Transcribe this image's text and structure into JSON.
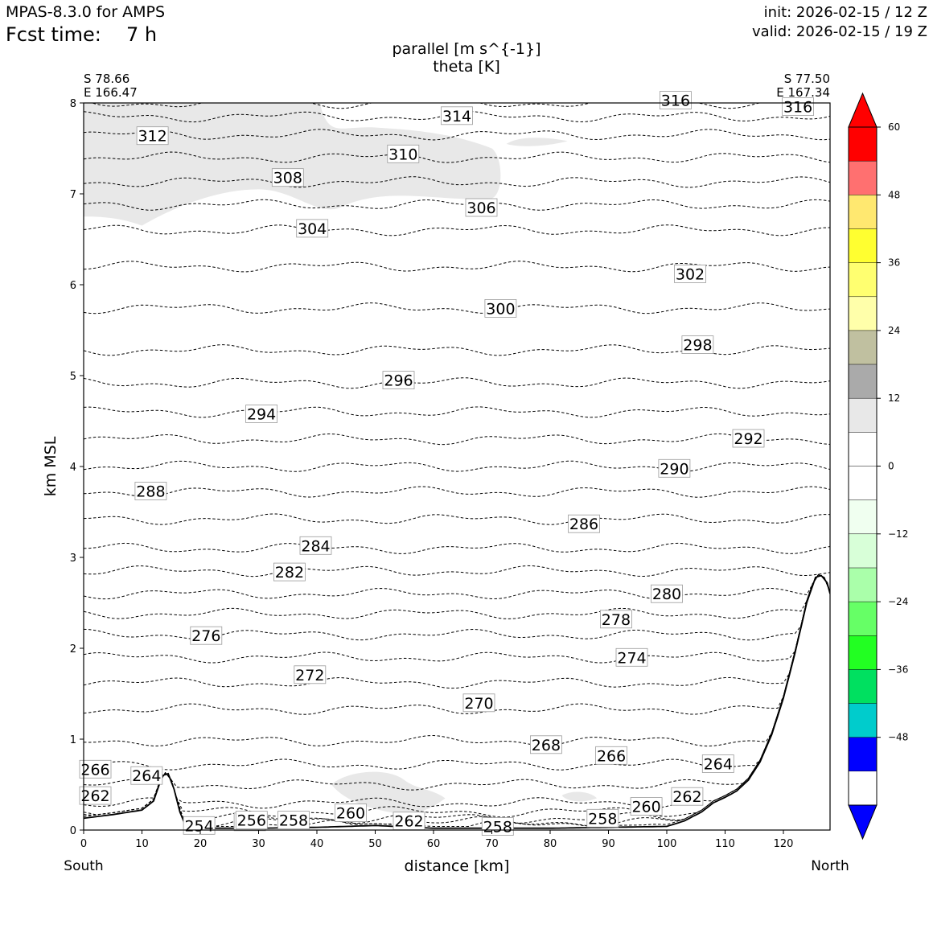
{
  "header": {
    "model": "MPAS-8.3.0 for AMPS",
    "fcst_label": "Fcst time:",
    "fcst_value": "7 h",
    "init": "init: 2026-02-15 / 12 Z",
    "valid": "valid: 2026-02-15 / 19 Z"
  },
  "chart_data": {
    "type": "contour",
    "title": "parallel [m s^{-1}]",
    "subtitle": "theta [K]",
    "xlabel": "distance [km]",
    "ylabel": "km MSL",
    "xlim": [
      0,
      128
    ],
    "ylim": [
      0,
      8
    ],
    "x_ticks": [
      "0",
      "10",
      "20",
      "30",
      "40",
      "50",
      "60",
      "70",
      "80",
      "90",
      "100",
      "110",
      "120"
    ],
    "y_ticks": [
      "0",
      "1",
      "2",
      "3",
      "4",
      "5",
      "6",
      "7",
      "8"
    ],
    "endpoints": {
      "left_lat": "S 78.66",
      "left_lon": "E 166.47",
      "left_dir": "South",
      "right_lat": "S 77.50",
      "right_lon": "E 167.34",
      "right_dir": "North"
    },
    "colorbar": {
      "ticks": [
        "60",
        "48",
        "36",
        "24",
        "12",
        "0",
        "−12",
        "−24",
        "−36",
        "−48"
      ],
      "levels": [
        60,
        54,
        48,
        42,
        36,
        30,
        24,
        18,
        12,
        6,
        0,
        -6,
        -12,
        -18,
        -24,
        -30,
        -36,
        -42,
        -48,
        -54,
        -60
      ],
      "colors": [
        "#ff0000",
        "#ff7070",
        "#ffe870",
        "#ffff30",
        "#ffff70",
        "#ffffaa",
        "#c0c0a0",
        "#aaaaaa",
        "#e8e8e8",
        "#ffffff",
        "#ffffff",
        "#f0fff0",
        "#d8ffd8",
        "#aaffaa",
        "#66ff66",
        "#22ff22",
        "#00e060",
        "#00cccc",
        "#0000ff"
      ],
      "over_color": "#ff0000",
      "under_color": "#0000ff"
    },
    "shading": [
      {
        "value_range": "6 to 12 m/s",
        "color": "#e8e8e8",
        "region": "upper-left",
        "km_x": [
          0,
          72
        ],
        "km_y": [
          6.7,
          8
        ]
      },
      {
        "value_range": "6 to 12 m/s",
        "color": "#e8e8e8",
        "region": "low-level",
        "km_x": [
          42,
          63
        ],
        "km_y": [
          0.1,
          0.7
        ]
      }
    ],
    "terrain": {
      "x": [
        0,
        5,
        10,
        12,
        13.5,
        14.5,
        15.5,
        16.5,
        17.5,
        19,
        22,
        30,
        40,
        50,
        60,
        70,
        80,
        90,
        100,
        103,
        106,
        108,
        110,
        112,
        114,
        116,
        118,
        120,
        122,
        124,
        125.5,
        126.5,
        127.5,
        128
      ],
      "y": [
        0.13,
        0.17,
        0.22,
        0.32,
        0.6,
        0.62,
        0.45,
        0.2,
        0.04,
        0.02,
        0.02,
        0.02,
        0.03,
        0.05,
        0.02,
        0.02,
        0.02,
        0.03,
        0.04,
        0.1,
        0.2,
        0.3,
        0.36,
        0.43,
        0.55,
        0.75,
        1.05,
        1.45,
        1.95,
        2.5,
        2.78,
        2.8,
        2.72,
        2.6
      ]
    },
    "theta_contours": [
      {
        "value": 254,
        "y": 0.05
      },
      {
        "value": 256,
        "y": 0.09
      },
      {
        "value": 258,
        "y": 0.13
      },
      {
        "value": 260,
        "y": 0.2
      },
      {
        "value": 262,
        "y": 0.3
      },
      {
        "value": 264,
        "y": 0.5
      },
      {
        "value": 266,
        "y": 0.72
      },
      {
        "value": 268,
        "y": 0.98
      },
      {
        "value": 270,
        "y": 1.33
      },
      {
        "value": 272,
        "y": 1.62
      },
      {
        "value": 274,
        "y": 1.9
      },
      {
        "value": 276,
        "y": 2.15
      },
      {
        "value": 278,
        "y": 2.38
      },
      {
        "value": 280,
        "y": 2.6
      },
      {
        "value": 282,
        "y": 2.85
      },
      {
        "value": 284,
        "y": 3.1
      },
      {
        "value": 286,
        "y": 3.42
      },
      {
        "value": 288,
        "y": 3.72
      },
      {
        "value": 290,
        "y": 4.0
      },
      {
        "value": 292,
        "y": 4.3
      },
      {
        "value": 294,
        "y": 4.6
      },
      {
        "value": 296,
        "y": 4.92
      },
      {
        "value": 298,
        "y": 5.28
      },
      {
        "value": 300,
        "y": 5.74
      },
      {
        "value": 302,
        "y": 6.2
      },
      {
        "value": 304,
        "y": 6.6
      },
      {
        "value": 306,
        "y": 6.88
      },
      {
        "value": 308,
        "y": 7.13
      },
      {
        "value": 310,
        "y": 7.4
      },
      {
        "value": 312,
        "y": 7.65
      },
      {
        "value": 314,
        "y": 7.85
      },
      {
        "value": 316,
        "y": 8.0
      }
    ],
    "contour_labels": [
      {
        "text": "316",
        "x": 101.5,
        "y": 8.03
      },
      {
        "text": "316",
        "x": 122.5,
        "y": 7.96
      },
      {
        "text": "314",
        "x": 64.0,
        "y": 7.86
      },
      {
        "text": "312",
        "x": 11.8,
        "y": 7.64
      },
      {
        "text": "310",
        "x": 54.8,
        "y": 7.44
      },
      {
        "text": "308",
        "x": 35.0,
        "y": 7.18
      },
      {
        "text": "306",
        "x": 68.2,
        "y": 6.85
      },
      {
        "text": "304",
        "x": 39.2,
        "y": 6.62
      },
      {
        "text": "302",
        "x": 104.0,
        "y": 6.12
      },
      {
        "text": "300",
        "x": 71.5,
        "y": 5.74
      },
      {
        "text": "298",
        "x": 105.3,
        "y": 5.34
      },
      {
        "text": "296",
        "x": 54.0,
        "y": 4.95
      },
      {
        "text": "294",
        "x": 30.5,
        "y": 4.58
      },
      {
        "text": "292",
        "x": 114.0,
        "y": 4.31
      },
      {
        "text": "290",
        "x": 101.3,
        "y": 3.98
      },
      {
        "text": "288",
        "x": 11.5,
        "y": 3.73
      },
      {
        "text": "286",
        "x": 85.8,
        "y": 3.37
      },
      {
        "text": "284",
        "x": 39.8,
        "y": 3.13
      },
      {
        "text": "282",
        "x": 35.3,
        "y": 2.84
      },
      {
        "text": "280",
        "x": 100.0,
        "y": 2.6
      },
      {
        "text": "278",
        "x": 91.3,
        "y": 2.32
      },
      {
        "text": "276",
        "x": 21.0,
        "y": 2.14
      },
      {
        "text": "274",
        "x": 94.0,
        "y": 1.9
      },
      {
        "text": "272",
        "x": 38.8,
        "y": 1.71
      },
      {
        "text": "270",
        "x": 67.8,
        "y": 1.4
      },
      {
        "text": "268",
        "x": 79.3,
        "y": 0.94
      },
      {
        "text": "266",
        "x": 90.5,
        "y": 0.82
      },
      {
        "text": "266",
        "x": 2.0,
        "y": 0.67
      },
      {
        "text": "264",
        "x": 10.8,
        "y": 0.6
      },
      {
        "text": "264",
        "x": 108.8,
        "y": 0.73
      },
      {
        "text": "262",
        "x": 2.0,
        "y": 0.38
      },
      {
        "text": "262",
        "x": 103.5,
        "y": 0.37
      },
      {
        "text": "262",
        "x": 55.8,
        "y": 0.1
      },
      {
        "text": "260",
        "x": 45.8,
        "y": 0.19
      },
      {
        "text": "260",
        "x": 96.5,
        "y": 0.26
      },
      {
        "text": "258",
        "x": 36.0,
        "y": 0.11
      },
      {
        "text": "258",
        "x": 89.0,
        "y": 0.13
      },
      {
        "text": "258",
        "x": 71.0,
        "y": 0.04
      },
      {
        "text": "256",
        "x": 28.5,
        "y": 0.09
      },
      {
        "text": "256",
        "x": 28.8,
        "y": 0.11
      },
      {
        "text": "254",
        "x": 19.8,
        "y": 0.05
      }
    ]
  }
}
